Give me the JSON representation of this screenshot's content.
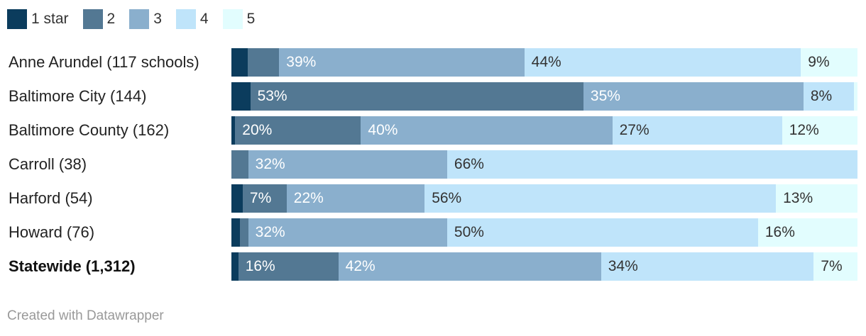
{
  "chart_data": {
    "type": "bar",
    "orientation": "horizontal",
    "stacked": true,
    "normalized": true,
    "categories": [
      "Anne Arundel (117 schools)",
      "Baltimore City (144)",
      "Baltimore County (162)",
      "Carroll (38)",
      "Harford (54)",
      "Howard (76)",
      "Statewide (1,312)"
    ],
    "bold_categories": [
      "Statewide (1,312)"
    ],
    "series": [
      {
        "name": "1 star",
        "color": "#0b3c5d",
        "values": [
          2.6,
          3,
          0.6,
          0,
          1.8,
          1.4,
          1.1
        ]
      },
      {
        "name": "2",
        "color": "#537893",
        "values": [
          5,
          53,
          20,
          2.7,
          7,
          1.3,
          16
        ]
      },
      {
        "name": "3",
        "color": "#8aafcd",
        "values": [
          39,
          35,
          40,
          32,
          22,
          32,
          42
        ]
      },
      {
        "name": "4",
        "color": "#bfe4fa",
        "values": [
          44,
          8,
          27,
          66,
          56,
          50,
          34
        ]
      },
      {
        "name": "5",
        "color": "#e2fdfe",
        "values": [
          9,
          0.6,
          12,
          0,
          13,
          16,
          7
        ]
      }
    ],
    "data_labels": [
      [
        "",
        "",
        "39%",
        "44%",
        "9%"
      ],
      [
        "",
        "53%",
        "35%",
        "8%",
        ""
      ],
      [
        "",
        "20%",
        "40%",
        "27%",
        "12%"
      ],
      [
        "",
        "",
        "32%",
        "66%",
        ""
      ],
      [
        "",
        "7%",
        "22%",
        "56%",
        "13%"
      ],
      [
        "",
        "",
        "32%",
        "50%",
        "16%"
      ],
      [
        "",
        "16%",
        "42%",
        "34%",
        "7%"
      ]
    ],
    "label_colors": [
      "#ffffff",
      "#ffffff",
      "#ffffff",
      "#333333",
      "#333333"
    ],
    "legend_position": "top-left",
    "xlim": [
      0,
      100
    ]
  },
  "footer": {
    "credit": "Created with Datawrapper"
  }
}
